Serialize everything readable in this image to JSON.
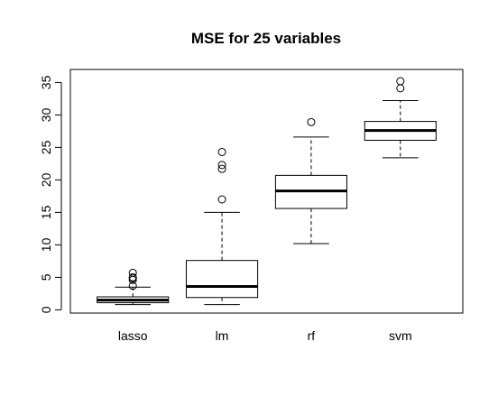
{
  "chart_data": {
    "type": "boxplot",
    "title": "MSE for 25 variables",
    "xlabel": "",
    "ylabel": "",
    "categories": [
      "lasso",
      "lm",
      "rf",
      "svm"
    ],
    "ylim": [
      -0.5,
      37
    ],
    "yticks": [
      0,
      5,
      10,
      15,
      20,
      25,
      30,
      35
    ],
    "boxes": [
      {
        "category": "lasso",
        "whisker_low": 0.8,
        "q1": 1.1,
        "median": 1.5,
        "q3": 2.0,
        "whisker_high": 3.5,
        "outliers": [
          3.7,
          4.6,
          4.9,
          5.0,
          5.7
        ]
      },
      {
        "category": "lm",
        "whisker_low": 0.8,
        "q1": 1.9,
        "median": 3.6,
        "q3": 7.6,
        "whisker_high": 15.0,
        "outliers": [
          17.0,
          21.7,
          22.3,
          24.3
        ]
      },
      {
        "category": "rf",
        "whisker_low": 10.2,
        "q1": 15.6,
        "median": 18.3,
        "q3": 20.7,
        "whisker_high": 26.6,
        "outliers": [
          28.9
        ]
      },
      {
        "category": "svm",
        "whisker_low": 23.4,
        "q1": 26.1,
        "median": 27.6,
        "q3": 29.0,
        "whisker_high": 32.2,
        "outliers": [
          34.1,
          35.2
        ]
      }
    ],
    "colors": {
      "box_fill": "#ffffff",
      "stroke": "#000000",
      "background": "#ffffff"
    },
    "grid": false,
    "legend": "none"
  }
}
